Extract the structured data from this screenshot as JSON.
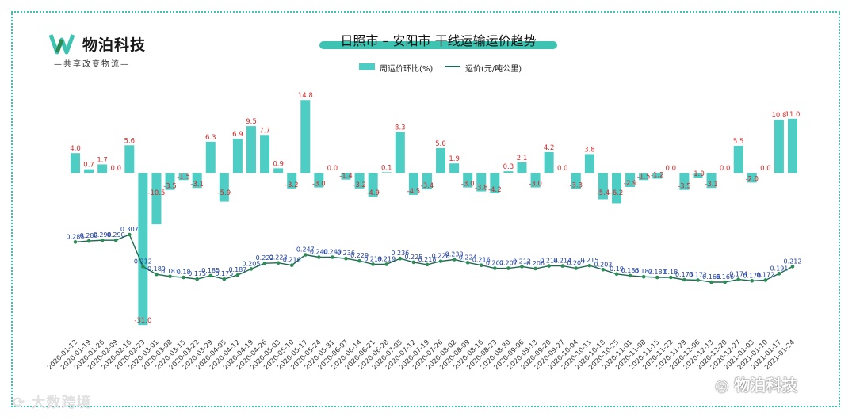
{
  "brand": {
    "name": "物泊科技",
    "slogan": "—共享改变物流—"
  },
  "watermark": {
    "left_text": "大数跨境",
    "right_text": "物泊科技"
  },
  "colors": {
    "bar": "#4ecdc4",
    "line": "#1a6b4f",
    "marker": "#2e8b57",
    "bar_label": "#d62728",
    "line_label": "#1f3fa0",
    "accent": "#3cc3b1"
  },
  "chart_data": {
    "type": "bar",
    "title": "日照市 – 安阳市 干线运输运价趋势",
    "legend_placement": "top-center",
    "grid": false,
    "categories": [
      "2020-01-12",
      "2020-01-19",
      "2020-01-26",
      "2020-02-09",
      "2020-02-16",
      "2020-02-23",
      "2020-03-01",
      "2020-03-08",
      "2020-03-15",
      "2020-03-22",
      "2020-03-29",
      "2020-04-05",
      "2020-04-12",
      "2020-04-19",
      "2020-04-26",
      "2020-05-03",
      "2020-05-10",
      "2020-05-17",
      "2020-05-24",
      "2020-05-31",
      "2020-06-07",
      "2020-06-14",
      "2020-06-21",
      "2020-06-28",
      "2020-07-05",
      "2020-07-12",
      "2020-07-19",
      "2020-07-26",
      "2020-08-02",
      "2020-08-09",
      "2020-08-16",
      "2020-08-23",
      "2020-08-30",
      "2020-09-06",
      "2020-09-13",
      "2020-09-20",
      "2020-09-27",
      "2020-10-04",
      "2020-10-11",
      "2020-10-18",
      "2020-10-25",
      "2020-11-01",
      "2020-11-08",
      "2020-11-15",
      "2020-11-22",
      "2020-11-29",
      "2020-12-06",
      "2020-12-13",
      "2020-12-20",
      "2020-12-27",
      "2021-01-03",
      "2021-01-10",
      "2021-01-17",
      "2021-01-24"
    ],
    "series": [
      {
        "name": "周运价环比(%)",
        "type": "bar",
        "values": [
          4.0,
          0.7,
          1.7,
          0.0,
          5.6,
          -31.0,
          -10.5,
          -3.5,
          -1.5,
          -3.1,
          6.3,
          -5.9,
          6.9,
          9.5,
          7.7,
          0.9,
          -3.2,
          14.8,
          -3.0,
          0.0,
          -1.4,
          -3.2,
          -4.9,
          0.1,
          8.3,
          -4.5,
          -3.4,
          5.0,
          1.9,
          -3.0,
          -3.8,
          -4.2,
          0.3,
          2.1,
          -3.0,
          4.2,
          0.0,
          -3.3,
          3.8,
          -5.4,
          -6.2,
          -2.9,
          -1.5,
          -1.2,
          0.0,
          -3.5,
          -1.0,
          -3.1,
          0.0,
          5.5,
          -2.0,
          0.0,
          10.8,
          11.0
        ]
      },
      {
        "name": "运价(元/吨公里)",
        "type": "line",
        "values": [
          0.285,
          0.288,
          0.29,
          0.29,
          0.307,
          0.212,
          0.189,
          0.183,
          0.18,
          0.175,
          0.185,
          0.175,
          0.187,
          0.205,
          0.222,
          0.223,
          0.216,
          0.247,
          0.24,
          0.24,
          0.236,
          0.229,
          0.219,
          0.219,
          0.236,
          0.225,
          0.218,
          0.228,
          0.233,
          0.224,
          0.216,
          0.207,
          0.207,
          0.212,
          0.206,
          0.214,
          0.214,
          0.207,
          0.215,
          0.203,
          0.19,
          0.185,
          0.182,
          0.18,
          0.18,
          0.173,
          0.172,
          0.166,
          0.166,
          0.174,
          0.17,
          0.172,
          0.191,
          0.212
        ]
      }
    ],
    "bar_label_texts": [
      "4.0",
      "0.7",
      "1.7",
      "0.0",
      "5.6",
      "-31.0",
      "-10.5",
      "-3.5",
      "-1.5",
      "-3.1",
      "6.3",
      "-5.9",
      "6.9",
      "9.5",
      "7.7",
      "0.9",
      "-3.2",
      "14.8",
      "-3.0",
      "0.0",
      "-1.4",
      "-3.2",
      "-4.9",
      "0.1",
      "8.3",
      "-4.5",
      "-3.4",
      "5.0",
      "1.9",
      "-3.0",
      "-3.8",
      "-4.2",
      "0.3",
      "2.1",
      "-3.0",
      "4.2",
      "0.0",
      "-3.3",
      "3.8",
      "-5.4",
      "-6.2",
      "-2.9",
      "-1.5",
      "-1.2",
      "0.0",
      "-3.5",
      "-1.0",
      "-3.1",
      "0.0",
      "5.5",
      "-2.0",
      "0.0",
      "10.8",
      "11.0"
    ],
    "line_label_texts": [
      "0.285",
      "0.288",
      "0.290",
      "0.290",
      "0.307",
      "0.212",
      "0.189",
      "0.183",
      "0.18",
      "0.175",
      "0.185",
      "0.175",
      "0.187",
      "0.205",
      "0.222",
      "0.223",
      "0.216",
      "0.247",
      "0.240",
      "0.240",
      "0.236",
      "0.229",
      "0.219",
      "0.219",
      "0.236",
      "0.225",
      "0.218",
      "0.228",
      "0.233",
      "0.224",
      "0.216",
      "0.207",
      "0.207",
      "0.212",
      "0.206",
      "0.214",
      "0.214",
      "0.207",
      "0.215",
      "0.203",
      "0.19",
      "0.185",
      "0.182",
      "0.180",
      "0.18",
      "0.173",
      "0.172",
      "0.166",
      "0.166",
      "0.174",
      "0.170",
      "0.172",
      "0.191",
      "0.212"
    ]
  }
}
